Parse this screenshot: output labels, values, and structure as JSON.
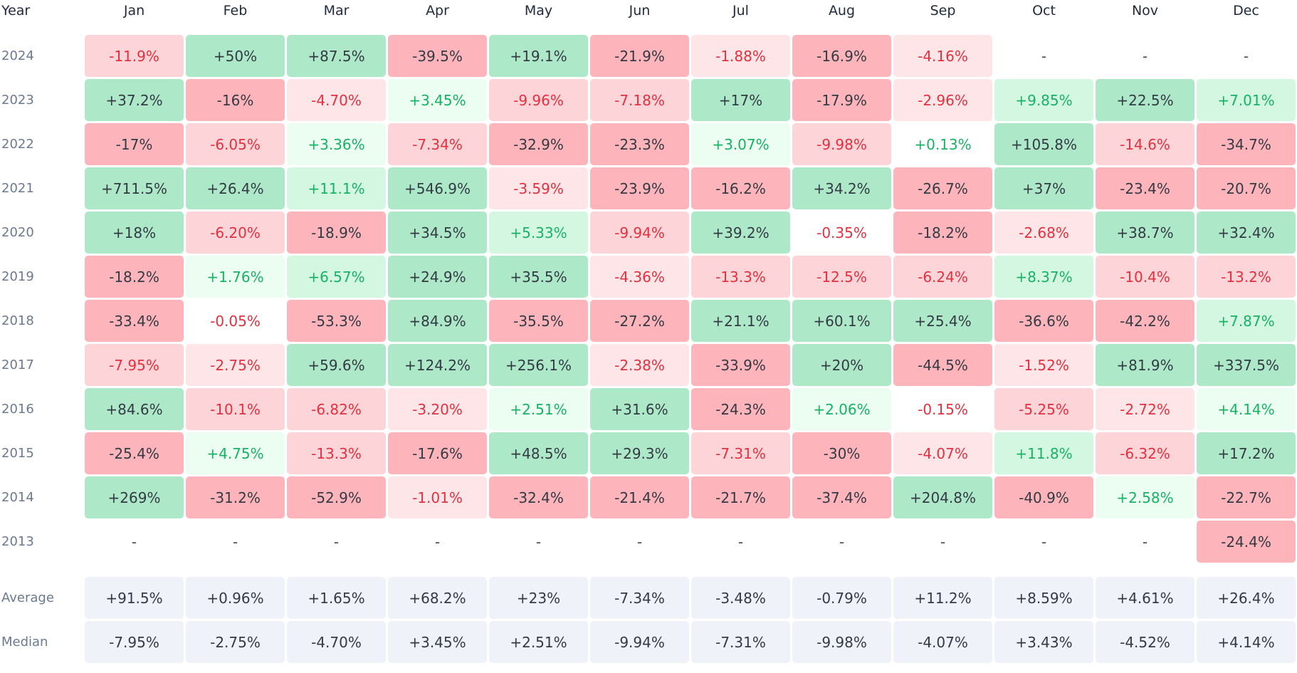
{
  "chart_data": {
    "type": "heatmap",
    "row_header": "Year",
    "months": [
      "Jan",
      "Feb",
      "Mar",
      "Apr",
      "May",
      "Jun",
      "Jul",
      "Aug",
      "Sep",
      "Oct",
      "Nov",
      "Dec"
    ],
    "years": [
      "2024",
      "2023",
      "2022",
      "2021",
      "2020",
      "2019",
      "2018",
      "2017",
      "2016",
      "2015",
      "2014",
      "2013"
    ],
    "values": [
      [
        "-11.9%",
        "+50%",
        "+87.5%",
        "-39.5%",
        "+19.1%",
        "-21.9%",
        "-1.88%",
        "-16.9%",
        "-4.16%",
        "-",
        "-",
        "-"
      ],
      [
        "+37.2%",
        "-16%",
        "-4.70%",
        "+3.45%",
        "-9.96%",
        "-7.18%",
        "+17%",
        "-17.9%",
        "-2.96%",
        "+9.85%",
        "+22.5%",
        "+7.01%"
      ],
      [
        "-17%",
        "-6.05%",
        "+3.36%",
        "-7.34%",
        "-32.9%",
        "-23.3%",
        "+3.07%",
        "-9.98%",
        "+0.13%",
        "+105.8%",
        "-14.6%",
        "-34.7%"
      ],
      [
        "+711.5%",
        "+26.4%",
        "+11.1%",
        "+546.9%",
        "-3.59%",
        "-23.9%",
        "-16.2%",
        "+34.2%",
        "-26.7%",
        "+37%",
        "-23.4%",
        "-20.7%"
      ],
      [
        "+18%",
        "-6.20%",
        "-18.9%",
        "+34.5%",
        "+5.33%",
        "-9.94%",
        "+39.2%",
        "-0.35%",
        "-18.2%",
        "-2.68%",
        "+38.7%",
        "+32.4%"
      ],
      [
        "-18.2%",
        "+1.76%",
        "+6.57%",
        "+24.9%",
        "+35.5%",
        "-4.36%",
        "-13.3%",
        "-12.5%",
        "-6.24%",
        "+8.37%",
        "-10.4%",
        "-13.2%"
      ],
      [
        "-33.4%",
        "-0.05%",
        "-53.3%",
        "+84.9%",
        "-35.5%",
        "-27.2%",
        "+21.1%",
        "+60.1%",
        "+25.4%",
        "-36.6%",
        "-42.2%",
        "+7.87%"
      ],
      [
        "-7.95%",
        "-2.75%",
        "+59.6%",
        "+124.2%",
        "+256.1%",
        "-2.38%",
        "-33.9%",
        "+20%",
        "-44.5%",
        "-1.52%",
        "+81.9%",
        "+337.5%"
      ],
      [
        "+84.6%",
        "-10.1%",
        "-6.82%",
        "-3.20%",
        "+2.51%",
        "+31.6%",
        "-24.3%",
        "+2.06%",
        "-0.15%",
        "-5.25%",
        "-2.72%",
        "+4.14%"
      ],
      [
        "-25.4%",
        "+4.75%",
        "-13.3%",
        "-17.6%",
        "+48.5%",
        "+29.3%",
        "-7.31%",
        "-30%",
        "-4.07%",
        "+11.8%",
        "-6.32%",
        "+17.2%"
      ],
      [
        "+269%",
        "-31.2%",
        "-52.9%",
        "-1.01%",
        "-32.4%",
        "-21.4%",
        "-21.7%",
        "-37.4%",
        "+204.8%",
        "-40.9%",
        "+2.58%",
        "-22.7%"
      ],
      [
        "-",
        "-",
        "-",
        "-",
        "-",
        "-",
        "-",
        "-",
        "-",
        "-",
        "-",
        "-24.4%"
      ]
    ],
    "summary": [
      {
        "label": "Average",
        "values": [
          "+91.5%",
          "+0.96%",
          "+1.65%",
          "+68.2%",
          "+23%",
          "-7.34%",
          "-3.48%",
          "-0.79%",
          "+11.2%",
          "+8.59%",
          "+4.61%",
          "+26.4%"
        ]
      },
      {
        "label": "Median",
        "values": [
          "-7.95%",
          "-2.75%",
          "-4.70%",
          "+3.45%",
          "+2.51%",
          "-9.94%",
          "-7.31%",
          "-9.98%",
          "-4.07%",
          "+3.43%",
          "-4.52%",
          "+4.14%"
        ]
      }
    ],
    "colors": {
      "strong_positive_bg": "#ade9c9",
      "strong_positive_text": "#333a44",
      "mild_positive_bg": "#d4f7e2",
      "mild_positive_text": "#16b364",
      "faint_positive_bg": "#ecfdf1",
      "faint_positive_text": "#16b364",
      "strong_negative_bg": "#fdb4ba",
      "strong_negative_text": "#333a44",
      "mild_negative_bg": "#fdd4d7",
      "mild_negative_text": "#e5303f",
      "faint_negative_bg": "#fee6e8",
      "faint_negative_text": "#e5303f",
      "neutral_text": "#e5303f",
      "summary_bg": "#eff2f8"
    }
  }
}
